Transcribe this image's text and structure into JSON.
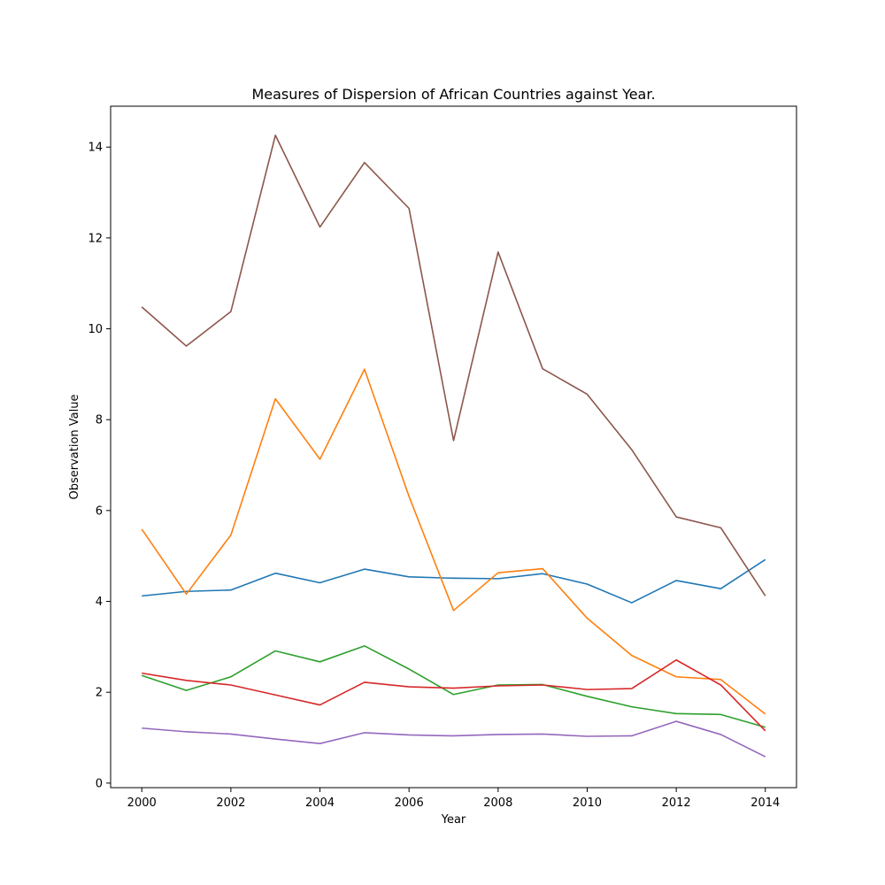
{
  "chart_data": {
    "type": "line",
    "title": "Measures of Dispersion of African Countries against Year.",
    "xlabel": "Year",
    "ylabel": "Observation Value",
    "xlim": [
      1999.3,
      2014.7
    ],
    "ylim": [
      -0.1,
      14.9
    ],
    "xticks": [
      2000,
      2002,
      2004,
      2006,
      2008,
      2010,
      2012,
      2014
    ],
    "yticks": [
      0,
      2,
      4,
      6,
      8,
      10,
      12,
      14
    ],
    "grid": false,
    "x": [
      2000,
      2001,
      2002,
      2003,
      2004,
      2005,
      2006,
      2007,
      2008,
      2009,
      2010,
      2011,
      2012,
      2013,
      2014
    ],
    "series": [
      {
        "color": "#1f77b4",
        "values": [
          4.12,
          4.22,
          4.25,
          4.62,
          4.41,
          4.71,
          4.54,
          4.51,
          4.5,
          4.61,
          4.38,
          3.97,
          4.46,
          4.28,
          4.92
        ]
      },
      {
        "color": "#ff7f0e",
        "values": [
          5.59,
          4.16,
          5.46,
          8.46,
          7.13,
          9.11,
          6.31,
          3.8,
          4.63,
          4.72,
          3.63,
          2.81,
          2.34,
          2.28,
          1.52
        ]
      },
      {
        "color": "#2ca02c",
        "values": [
          2.37,
          2.04,
          2.34,
          2.91,
          2.67,
          3.02,
          2.51,
          1.95,
          2.16,
          2.17,
          1.91,
          1.68,
          1.53,
          1.51,
          1.23
        ]
      },
      {
        "color": "#d62728",
        "values": [
          2.42,
          2.26,
          2.16,
          1.94,
          1.72,
          2.22,
          2.12,
          2.09,
          2.14,
          2.16,
          2.06,
          2.08,
          2.71,
          2.16,
          1.15
        ]
      },
      {
        "color": "#9467bd",
        "values": [
          1.21,
          1.13,
          1.08,
          0.97,
          0.87,
          1.11,
          1.06,
          1.04,
          1.07,
          1.08,
          1.03,
          1.04,
          1.36,
          1.07,
          0.58
        ]
      },
      {
        "color": "#8c564b",
        "values": [
          10.48,
          9.62,
          10.38,
          14.26,
          12.24,
          13.66,
          12.65,
          7.54,
          11.69,
          9.12,
          8.56,
          7.34,
          5.86,
          5.62,
          4.12
        ]
      }
    ]
  }
}
